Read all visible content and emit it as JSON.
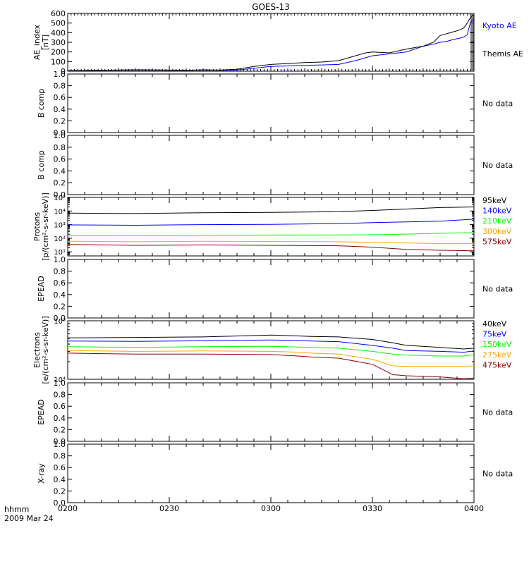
{
  "title": "GOES-13",
  "footer": {
    "xunit": "hhmm",
    "date": "2009 Mar 24"
  },
  "time_ticks": [
    "0200",
    "0230",
    "0300",
    "0330",
    "0400"
  ],
  "chart_data": [
    {
      "type": "line",
      "ylabel": [
        "AE_index",
        "[nT]"
      ],
      "yticks": [
        "0",
        "100",
        "200",
        "300",
        "400",
        "500",
        "600"
      ],
      "ylim": [
        0,
        600
      ],
      "x_unit": "minutes after 0200",
      "series": [
        {
          "name": "Kyoto AE",
          "color": "#0000ff",
          "x": [
            0,
            10,
            20,
            30,
            35,
            40,
            45,
            50,
            55,
            60,
            65,
            70,
            75,
            80,
            85,
            88,
            90,
            95,
            100,
            105,
            108,
            110,
            112,
            114,
            116,
            117,
            118,
            119,
            120
          ],
          "y": [
            5,
            10,
            12,
            10,
            8,
            15,
            10,
            12,
            30,
            50,
            55,
            60,
            65,
            70,
            110,
            140,
            160,
            180,
            200,
            260,
            280,
            300,
            310,
            330,
            345,
            355,
            380,
            510,
            540
          ]
        },
        {
          "name": "Themis AE",
          "color": "#000000",
          "x": [
            0,
            10,
            20,
            30,
            35,
            40,
            45,
            50,
            55,
            60,
            65,
            70,
            75,
            80,
            85,
            88,
            90,
            95,
            100,
            105,
            108,
            110,
            112,
            114,
            116,
            117,
            118,
            119,
            120
          ],
          "y": [
            5,
            10,
            15,
            12,
            10,
            12,
            12,
            20,
            50,
            70,
            80,
            90,
            95,
            110,
            160,
            190,
            200,
            190,
            230,
            260,
            300,
            370,
            390,
            410,
            430,
            450,
            500,
            560,
            590
          ]
        }
      ]
    },
    {
      "type": "line",
      "ylabel": [
        "B comp"
      ],
      "yticks": [
        "0.0",
        "0.2",
        "0.4",
        "0.6",
        "0.8",
        "1.0"
      ],
      "ylim": [
        0,
        1
      ],
      "note": "No data",
      "series": []
    },
    {
      "type": "line",
      "ylabel": [
        "B comp"
      ],
      "yticks": [
        "0.0",
        "0.2",
        "0.4",
        "0.6",
        "0.8",
        "1.0"
      ],
      "ylim": [
        0,
        1
      ],
      "note": "No data",
      "series": []
    },
    {
      "type": "line",
      "ylabel": [
        "Protons",
        "[p/(cm²-s-sr-keV)]"
      ],
      "yscale": "log",
      "ylim": [
        5,
        100000
      ],
      "yticks_log": [
        {
          "value": 10,
          "label": "10¹"
        },
        {
          "value": 100,
          "label": "10²"
        },
        {
          "value": 1000,
          "label": "10³"
        },
        {
          "value": 10000,
          "label": "10⁴"
        },
        {
          "value": 100000,
          "label": "10⁵"
        }
      ],
      "x_unit": "minutes after 0200",
      "series": [
        {
          "name": "575keV",
          "color": "#8b0000",
          "x": [
            0,
            20,
            40,
            60,
            80,
            90,
            100,
            110,
            120
          ],
          "y": [
            35,
            30,
            32,
            30,
            28,
            22,
            15,
            13,
            12
          ]
        },
        {
          "name": "300keV",
          "color": "#ffa500",
          "x": [
            0,
            20,
            40,
            60,
            80,
            90,
            100,
            110,
            120
          ],
          "y": [
            60,
            55,
            60,
            58,
            55,
            50,
            45,
            40,
            40
          ]
        },
        {
          "name": "210keV",
          "color": "#00ff00",
          "x": [
            0,
            20,
            40,
            60,
            80,
            90,
            100,
            110,
            120
          ],
          "y": [
            160,
            150,
            165,
            170,
            175,
            180,
            200,
            230,
            260
          ]
        },
        {
          "name": "140keV",
          "color": "#0000ff",
          "x": [
            0,
            20,
            40,
            60,
            80,
            90,
            100,
            110,
            120
          ],
          "y": [
            950,
            900,
            1000,
            1050,
            1200,
            1400,
            1600,
            1800,
            2500
          ]
        },
        {
          "name": "95keV",
          "color": "#000000",
          "x": [
            0,
            20,
            40,
            60,
            80,
            90,
            100,
            110,
            120
          ],
          "y": [
            7000,
            6500,
            7500,
            8000,
            9000,
            11000,
            14000,
            18000,
            20000
          ]
        }
      ]
    },
    {
      "type": "line",
      "ylabel": [
        "EPEAD"
      ],
      "yticks": [
        "0.0",
        "0.2",
        "0.4",
        "0.6",
        "0.8",
        "1.0"
      ],
      "ylim": [
        0,
        1
      ],
      "note": "No data",
      "series": []
    },
    {
      "type": "line",
      "ylabel": [
        "Electrons",
        "[e/(cm²-s-sr-keV)]"
      ],
      "yscale": "log",
      "ylim": [
        10000,
        100000
      ],
      "yticks_log": [
        {
          "value": 10000,
          "label": "10⁴"
        },
        {
          "value": 100000,
          "label": "10⁵"
        }
      ],
      "x_unit": "minutes after 0200",
      "series": [
        {
          "name": "475keV",
          "color": "#8b0000",
          "x": [
            0,
            20,
            40,
            60,
            68,
            72,
            80,
            90,
            96,
            100,
            110,
            117,
            120
          ],
          "y": [
            28000,
            27000,
            27000,
            26500,
            25000,
            24000,
            23000,
            18000,
            12000,
            11500,
            11000,
            10200,
            10500
          ]
        },
        {
          "name": "275keV",
          "color": "#ffa500",
          "x": [
            0,
            20,
            40,
            60,
            68,
            72,
            80,
            90,
            96,
            100,
            110,
            117,
            120
          ],
          "y": [
            31000,
            30000,
            30500,
            30000,
            29000,
            28000,
            27000,
            22000,
            17000,
            16500,
            16500,
            16500,
            17000
          ]
        },
        {
          "name": "150keV",
          "color": "#00ff00",
          "x": [
            0,
            20,
            40,
            60,
            68,
            72,
            80,
            90,
            96,
            100,
            110,
            117,
            120
          ],
          "y": [
            36000,
            35000,
            36000,
            36500,
            35500,
            35000,
            34000,
            30000,
            27000,
            26000,
            25000,
            25000,
            26500
          ]
        },
        {
          "name": "75keV",
          "color": "#0000ff",
          "x": [
            0,
            20,
            40,
            60,
            68,
            72,
            80,
            90,
            96,
            100,
            110,
            117,
            120
          ],
          "y": [
            45000,
            44500,
            45500,
            47000,
            46000,
            45000,
            44000,
            38000,
            34000,
            31000,
            30000,
            29000,
            30500
          ]
        },
        {
          "name": "40keV",
          "color": "#000000",
          "x": [
            0,
            20,
            40,
            60,
            68,
            72,
            80,
            90,
            96,
            100,
            110,
            117,
            120
          ],
          "y": [
            51000,
            52000,
            53000,
            57000,
            55000,
            54000,
            53000,
            48000,
            42000,
            38000,
            35000,
            33000,
            34000
          ]
        }
      ]
    },
    {
      "type": "line",
      "ylabel": [
        "EPEAD"
      ],
      "yticks": [
        "0.0",
        "0.2",
        "0.4",
        "0.6",
        "0.8",
        "1.0"
      ],
      "ylim": [
        0,
        1
      ],
      "note": "No data",
      "series": []
    },
    {
      "type": "line",
      "ylabel": [
        "X-ray"
      ],
      "yticks": [
        "0.0",
        "0.2",
        "0.4",
        "0.6",
        "0.8",
        "1.0"
      ],
      "ylim": [
        0,
        1
      ],
      "note": "No data",
      "series": []
    }
  ]
}
